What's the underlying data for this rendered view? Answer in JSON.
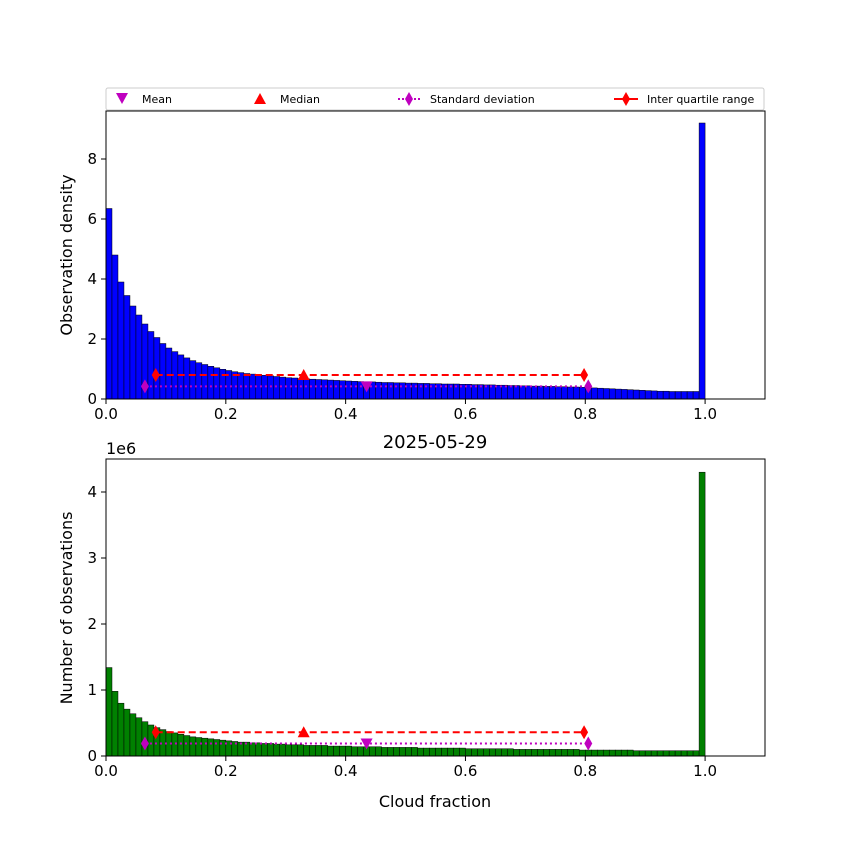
{
  "colors": {
    "top_bars": "#0000ff",
    "bottom_bars": "#008000",
    "mean": "#bf00bf",
    "median": "#ff0000",
    "std": "#bf00bf",
    "iqr": "#ff0000"
  },
  "legend": {
    "placement": "above top panel, full width",
    "mean": "Mean",
    "median": "Median",
    "std": "Standard deviation",
    "iqr": "Inter quartile range"
  },
  "chart_data": [
    {
      "type": "bar",
      "title": "",
      "xlabel": "",
      "ylabel": "Observation density",
      "xlim": [
        0,
        1.1
      ],
      "ylim": [
        0,
        9.6
      ],
      "bin_width": 0.01,
      "x_ticks": [
        "0.0",
        "0.2",
        "0.4",
        "0.6",
        "0.8",
        "1.0"
      ],
      "y_ticks": [
        "0",
        "2",
        "4",
        "6",
        "8"
      ],
      "values": [
        6.35,
        4.8,
        3.9,
        3.45,
        3.1,
        2.8,
        2.5,
        2.25,
        2.05,
        1.85,
        1.7,
        1.58,
        1.47,
        1.37,
        1.28,
        1.21,
        1.15,
        1.09,
        1.04,
        0.99,
        0.95,
        0.91,
        0.88,
        0.85,
        0.83,
        0.81,
        0.79,
        0.77,
        0.75,
        0.73,
        0.71,
        0.7,
        0.68,
        0.67,
        0.66,
        0.65,
        0.64,
        0.63,
        0.62,
        0.61,
        0.6,
        0.59,
        0.58,
        0.57,
        0.57,
        0.56,
        0.55,
        0.55,
        0.54,
        0.54,
        0.53,
        0.53,
        0.52,
        0.52,
        0.51,
        0.51,
        0.5,
        0.5,
        0.5,
        0.49,
        0.49,
        0.48,
        0.48,
        0.47,
        0.47,
        0.46,
        0.46,
        0.45,
        0.45,
        0.44,
        0.44,
        0.43,
        0.43,
        0.42,
        0.42,
        0.41,
        0.41,
        0.4,
        0.4,
        0.39,
        0.38,
        0.37,
        0.36,
        0.35,
        0.34,
        0.33,
        0.32,
        0.31,
        0.3,
        0.29,
        0.28,
        0.27,
        0.26,
        0.26,
        0.25,
        0.25,
        0.25,
        0.25,
        0.25,
        9.2
      ],
      "stats": {
        "mean": {
          "x": 0.435,
          "y": 0.42
        },
        "median": {
          "x": 0.33,
          "y": 0.8
        },
        "std_range": [
          0.065,
          0.805
        ],
        "std_y": 0.42,
        "iqr_range": [
          0.083,
          0.798
        ],
        "iqr_y": 0.8
      }
    },
    {
      "type": "bar",
      "title": "2025-05-29",
      "xlabel": "Cloud fraction",
      "ylabel": "Number of observations",
      "offset_label": "1e6",
      "xlim": [
        0,
        1.1
      ],
      "ylim": [
        0,
        4.5
      ],
      "bin_width": 0.01,
      "x_ticks": [
        "0.0",
        "0.2",
        "0.4",
        "0.6",
        "0.8",
        "1.0"
      ],
      "y_ticks": [
        "0",
        "1",
        "2",
        "3",
        "4"
      ],
      "values": [
        1.34,
        0.98,
        0.8,
        0.71,
        0.64,
        0.58,
        0.52,
        0.47,
        0.43,
        0.4,
        0.37,
        0.35,
        0.33,
        0.31,
        0.29,
        0.28,
        0.27,
        0.26,
        0.25,
        0.24,
        0.23,
        0.22,
        0.21,
        0.21,
        0.2,
        0.2,
        0.19,
        0.19,
        0.18,
        0.18,
        0.17,
        0.17,
        0.17,
        0.16,
        0.16,
        0.16,
        0.16,
        0.15,
        0.15,
        0.15,
        0.15,
        0.14,
        0.14,
        0.14,
        0.14,
        0.14,
        0.13,
        0.13,
        0.13,
        0.13,
        0.13,
        0.13,
        0.12,
        0.12,
        0.12,
        0.12,
        0.12,
        0.12,
        0.12,
        0.12,
        0.11,
        0.11,
        0.11,
        0.11,
        0.11,
        0.11,
        0.11,
        0.11,
        0.1,
        0.1,
        0.1,
        0.1,
        0.1,
        0.1,
        0.1,
        0.1,
        0.1,
        0.1,
        0.1,
        0.09,
        0.09,
        0.09,
        0.09,
        0.09,
        0.09,
        0.09,
        0.09,
        0.09,
        0.08,
        0.08,
        0.08,
        0.08,
        0.08,
        0.08,
        0.08,
        0.08,
        0.08,
        0.08,
        0.08,
        4.3
      ],
      "stats": {
        "mean": {
          "x": 0.435,
          "y": 0.19
        },
        "median": {
          "x": 0.33,
          "y": 0.36
        },
        "std_range": [
          0.065,
          0.805
        ],
        "std_y": 0.19,
        "iqr_range": [
          0.083,
          0.798
        ],
        "iqr_y": 0.36
      }
    }
  ]
}
